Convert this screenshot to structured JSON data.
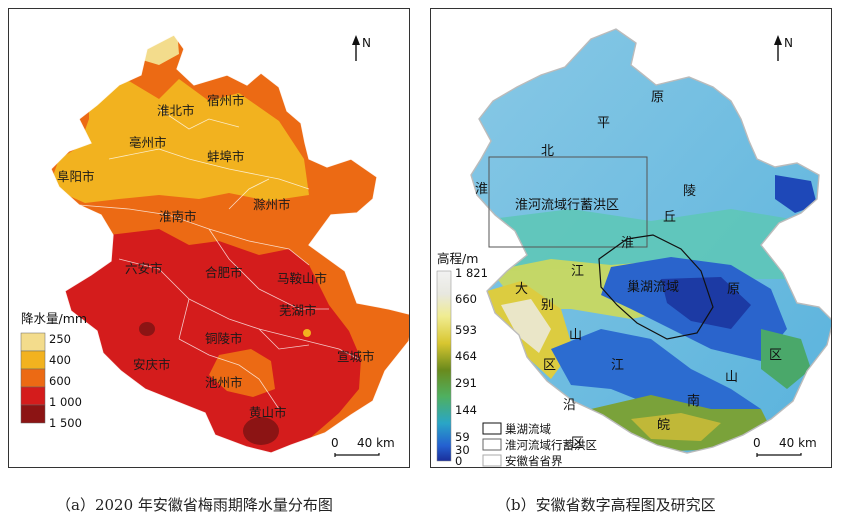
{
  "map_a": {
    "north": "N",
    "scale": {
      "zero": "0",
      "distance": "40 km"
    },
    "legend": {
      "title": "降水量/mm",
      "classes": [
        {
          "label": "250",
          "color": "#f3dc8c"
        },
        {
          "label": "400",
          "color": "#f2b21f"
        },
        {
          "label": "600",
          "color": "#ec6a14"
        },
        {
          "label": "1 000",
          "color": "#d41c1c"
        },
        {
          "label": "1 500",
          "color": "#8c1414"
        }
      ]
    },
    "cities": [
      "淮北市",
      "宿州市",
      "亳州市",
      "蚌埠市",
      "阜阳市",
      "滁州市",
      "淮南市",
      "六安市",
      "合肥市",
      "马鞍山市",
      "芜湖市",
      "铜陵市",
      "安庆市",
      "宣城市",
      "池州市",
      "黄山市"
    ],
    "caption": "（a）2020 年安徽省梅雨期降水量分布图"
  },
  "map_b": {
    "north": "N",
    "scale": {
      "zero": "0",
      "distance": "40 km"
    },
    "elevation_legend": {
      "title": "高程/m",
      "ticks": [
        "1 821",
        "660",
        "593",
        "464",
        "291",
        "144",
        "59",
        "30",
        "0"
      ]
    },
    "boundary_legend": [
      {
        "label": "巢湖流域",
        "color": "#111111"
      },
      {
        "label": "淮河流域行蓄洪区",
        "color": "#666666"
      },
      {
        "label": "安徽省省界",
        "color": "#aaaaaa"
      }
    ],
    "region_chars": [
      "原",
      "平",
      "北",
      "淮",
      "陵",
      "丘",
      "淮",
      "江",
      "原",
      "区",
      "大",
      "别",
      "山",
      "区",
      "江",
      "山",
      "沿",
      "区",
      "皖",
      "南"
    ],
    "study_labels": [
      "淮河流域行蓄洪区",
      "巢湖流域"
    ],
    "caption": "（b）安徽省数字高程图及研究区"
  }
}
